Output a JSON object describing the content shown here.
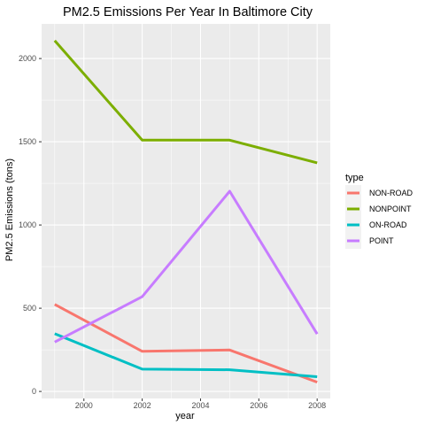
{
  "chart_data": {
    "type": "line",
    "title": "PM2.5 Emissions Per Year In Baltimore City",
    "xlabel": "year",
    "ylabel": "PM2.5 Emissions (tons)",
    "x": [
      1999,
      2002,
      2005,
      2008
    ],
    "xlim": [
      1998.55,
      2008.45
    ],
    "ylim": [
      -42,
      2208
    ],
    "x_ticks": [
      2000,
      2002,
      2004,
      2006,
      2008
    ],
    "x_tick_labels": [
      "2000",
      "2002",
      "2004",
      "2006",
      "2008"
    ],
    "y_ticks": [
      0,
      500,
      1000,
      1500,
      2000
    ],
    "y_tick_labels": [
      "0",
      "500",
      "1000",
      "1500",
      "2000"
    ],
    "grid": true,
    "background": "#ebebeb",
    "legend": {
      "title": "type",
      "position": "right"
    },
    "series": [
      {
        "name": "NON-ROAD",
        "color": "#f8766d",
        "values": [
          522.9,
          240.8,
          248.9,
          55.8
        ]
      },
      {
        "name": "NONPOINT",
        "color": "#7cae00",
        "values": [
          2107.6,
          1509.5,
          1509.5,
          1373.2
        ]
      },
      {
        "name": "ON-ROAD",
        "color": "#00bfc4",
        "values": [
          346.8,
          134.3,
          130.4,
          88.3
        ]
      },
      {
        "name": "POINT",
        "color": "#c77cff",
        "values": [
          296.8,
          569.3,
          1202.5,
          344.98
        ]
      }
    ]
  }
}
